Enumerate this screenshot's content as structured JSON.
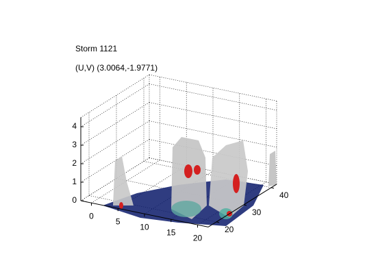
{
  "chart_data": {
    "type": "isosurface3d",
    "title": "Storm 1121",
    "subtitle": "(U,V) (3.0064,-1.9771)",
    "xlim": [
      -2,
      22
    ],
    "xticks": [
      0,
      5,
      10,
      15,
      20
    ],
    "ylim": [
      17,
      42
    ],
    "yticks": [
      20,
      30,
      40
    ],
    "zlim": [
      0,
      4.5
    ],
    "zticks": [
      0,
      1,
      2,
      3,
      4
    ],
    "grid": true
  }
}
